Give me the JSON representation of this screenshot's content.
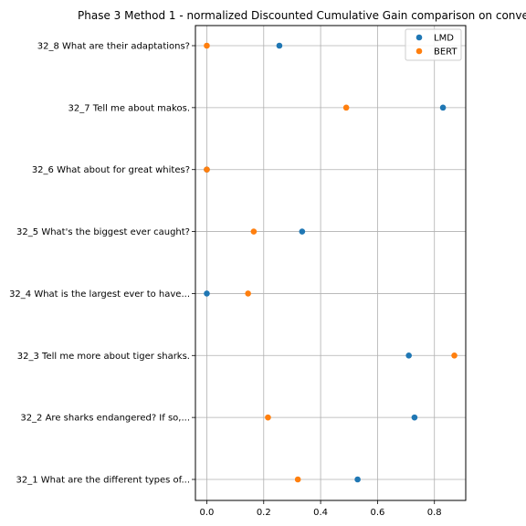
{
  "chart_data": {
    "type": "scatter",
    "title": "Phase 3 Method 1 - normalized Discounted Cumulative Gain comparison on conve",
    "xlabel": "",
    "ylabel": "",
    "xlim": [
      -0.04,
      0.91
    ],
    "xticks": [
      0.0,
      0.2,
      0.4,
      0.6,
      0.8
    ],
    "xtick_labels": [
      "0.0",
      "0.2",
      "0.4",
      "0.6",
      "0.8"
    ],
    "grid": true,
    "legend_position": "top-right",
    "categories": [
      "32_1 What are the different types of...",
      "32_2 Are sharks endangered? If so,...",
      "32_3 Tell me more about tiger sharks.",
      "32_4 What is the largest ever to have...",
      "32_5 What's the biggest ever caught?",
      "32_6 What about for great whites?",
      "32_7 Tell me about makos.",
      "32_8 What are their adaptations?"
    ],
    "series": [
      {
        "name": "LMD",
        "color": "#1f77b4",
        "values": [
          0.53,
          0.73,
          0.71,
          0.0,
          0.335,
          0.0,
          0.83,
          0.255
        ]
      },
      {
        "name": "BERT",
        "color": "#ff7f0e",
        "values": [
          0.32,
          0.215,
          0.87,
          0.145,
          0.165,
          0.0,
          0.49,
          0.0
        ]
      }
    ]
  }
}
